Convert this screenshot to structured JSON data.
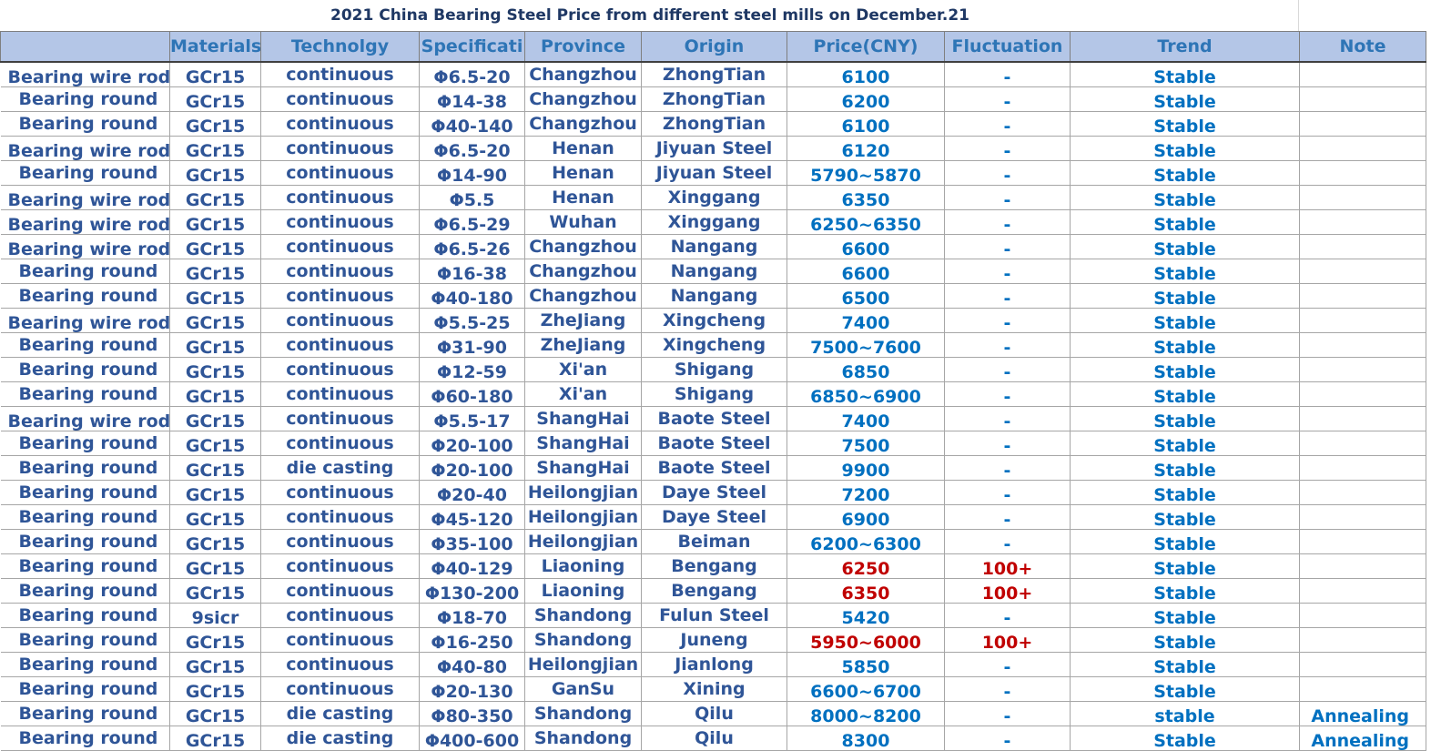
{
  "title": "2021 China Bearing Steel Price from different steel mills on  December.21",
  "columns": [
    "",
    "Materials",
    "Technolgy",
    "Specificati",
    "Province",
    "Origin",
    "Price(CNY)",
    "Fluctuation",
    "Trend",
    "Note"
  ],
  "rows": [
    {
      "name": "Bearing wire rod",
      "material": "GCr15",
      "tech": "continuous",
      "spec": "Φ6.5-20",
      "province": "Changzhou",
      "origin": "ZhongTian",
      "price": "6100",
      "fluct": "-",
      "trend": "Stable",
      "note": ""
    },
    {
      "name": "Bearing round",
      "material": "GCr15",
      "tech": "continuous",
      "spec": "Φ14-38",
      "province": "Changzhou",
      "origin": "ZhongTian",
      "price": "6200",
      "fluct": "-",
      "trend": "Stable",
      "note": ""
    },
    {
      "name": "Bearing round",
      "material": "GCr15",
      "tech": "continuous",
      "spec": "Φ40-140",
      "province": "Changzhou",
      "origin": "ZhongTian",
      "price": "6100",
      "fluct": "-",
      "trend": "Stable",
      "note": ""
    },
    {
      "name": "Bearing wire rod",
      "material": "GCr15",
      "tech": "continuous",
      "spec": "Φ6.5-20",
      "province": "Henan",
      "origin": "Jiyuan Steel",
      "price": "6120",
      "fluct": "-",
      "trend": "Stable",
      "note": ""
    },
    {
      "name": "Bearing round",
      "material": "GCr15",
      "tech": "continuous",
      "spec": "Φ14-90",
      "province": "Henan",
      "origin": "Jiyuan Steel",
      "price": "5790~5870",
      "fluct": "-",
      "trend": "Stable",
      "note": ""
    },
    {
      "name": "Bearing wire rod",
      "material": "GCr15",
      "tech": "continuous",
      "spec": "Φ5.5",
      "province": "Henan",
      "origin": "Xinggang",
      "price": "6350",
      "fluct": "-",
      "trend": "Stable",
      "note": ""
    },
    {
      "name": "Bearing wire rod",
      "material": "GCr15",
      "tech": "continuous",
      "spec": "Φ6.5-29",
      "province": "Wuhan",
      "origin": "Xinggang",
      "price": "6250~6350",
      "fluct": "-",
      "trend": "Stable",
      "note": ""
    },
    {
      "name": "Bearing wire rod",
      "material": "GCr15",
      "tech": "continuous",
      "spec": "Φ6.5-26",
      "province": "Changzhou",
      "origin": "Nangang",
      "price": "6600",
      "fluct": "-",
      "trend": "Stable",
      "note": ""
    },
    {
      "name": "Bearing round",
      "material": "GCr15",
      "tech": "continuous",
      "spec": "Φ16-38",
      "province": "Changzhou",
      "origin": "Nangang",
      "price": "6600",
      "fluct": "-",
      "trend": "Stable",
      "note": ""
    },
    {
      "name": "Bearing round",
      "material": "GCr15",
      "tech": "continuous",
      "spec": "Φ40-180",
      "province": "Changzhou",
      "origin": "Nangang",
      "price": "6500",
      "fluct": "-",
      "trend": "Stable",
      "note": ""
    },
    {
      "name": "Bearing wire rod",
      "material": "GCr15",
      "tech": "continuous",
      "spec": "Φ5.5-25",
      "province": "ZheJiang",
      "origin": "Xingcheng",
      "price": "7400",
      "fluct": "-",
      "trend": "Stable",
      "note": ""
    },
    {
      "name": "Bearing round",
      "material": "GCr15",
      "tech": "continuous",
      "spec": "Φ31-90",
      "province": "ZheJiang",
      "origin": "Xingcheng",
      "price": "7500~7600",
      "fluct": "-",
      "trend": "Stable",
      "note": ""
    },
    {
      "name": "Bearing round",
      "material": "GCr15",
      "tech": "continuous",
      "spec": "Φ12-59",
      "province": "Xi'an",
      "origin": "Shigang",
      "price": "6850",
      "fluct": "-",
      "trend": "Stable",
      "note": ""
    },
    {
      "name": "Bearing round",
      "material": "GCr15",
      "tech": "continuous",
      "spec": "Φ60-180",
      "province": "Xi'an",
      "origin": "Shigang",
      "price": "6850~6900",
      "fluct": "-",
      "trend": "Stable",
      "note": ""
    },
    {
      "name": "Bearing wire rod",
      "material": "GCr15",
      "tech": "continuous",
      "spec": "Φ5.5-17",
      "province": "ShangHai",
      "origin": "Baote Steel",
      "price": "7400",
      "fluct": "-",
      "trend": "Stable",
      "note": ""
    },
    {
      "name": "Bearing round",
      "material": "GCr15",
      "tech": "continuous",
      "spec": "Φ20-100",
      "province": "ShangHai",
      "origin": "Baote Steel",
      "price": "7500",
      "fluct": "-",
      "trend": "Stable",
      "note": ""
    },
    {
      "name": "Bearing round",
      "material": "GCr15",
      "tech": "die casting",
      "spec": "Φ20-100",
      "province": "ShangHai",
      "origin": "Baote Steel",
      "price": "9900",
      "fluct": "-",
      "trend": "Stable",
      "note": ""
    },
    {
      "name": "Bearing round",
      "material": "GCr15",
      "tech": "continuous",
      "spec": "Φ20-40",
      "province": "Heilongjian",
      "origin": "Daye  Steel",
      "price": "7200",
      "fluct": "-",
      "trend": "Stable",
      "note": ""
    },
    {
      "name": "Bearing round",
      "material": "GCr15",
      "tech": "continuous",
      "spec": "Φ45-120",
      "province": "Heilongjian",
      "origin": "Daye  Steel",
      "price": "6900",
      "fluct": "-",
      "trend": "Stable",
      "note": ""
    },
    {
      "name": "Bearing round",
      "material": "GCr15",
      "tech": "continuous",
      "spec": "Φ35-100",
      "province": "Heilongjian",
      "origin": "Beiman",
      "price": "6200~6300",
      "fluct": "-",
      "trend": "Stable",
      "note": ""
    },
    {
      "name": "Bearing round",
      "material": "GCr15",
      "tech": "continuous",
      "spec": "Φ40-129",
      "province": "Liaoning",
      "origin": "Bengang",
      "price": "6250",
      "fluct": "100+",
      "trend": "Stable",
      "note": "",
      "up": true
    },
    {
      "name": "Bearing round",
      "material": "GCr15",
      "tech": "continuous",
      "spec": "Φ130-200",
      "province": "Liaoning",
      "origin": "Bengang",
      "price": "6350",
      "fluct": "100+",
      "trend": "Stable",
      "note": "",
      "up": true
    },
    {
      "name": "Bearing round",
      "material": "9sicr",
      "tech": "continuous",
      "spec": "Φ18-70",
      "province": "Shandong",
      "origin": "Fulun Steel",
      "price": "5420",
      "fluct": "-",
      "trend": "Stable",
      "note": ""
    },
    {
      "name": "Bearing round",
      "material": "GCr15",
      "tech": "continuous",
      "spec": "Φ16-250",
      "province": "Shandong",
      "origin": "Juneng",
      "price": "5950~6000",
      "fluct": "100+",
      "trend": "Stable",
      "note": "",
      "up": true
    },
    {
      "name": "Bearing round",
      "material": "GCr15",
      "tech": "continuous",
      "spec": "Φ40-80",
      "province": "Heilongjian",
      "origin": "Jianlong",
      "price": "5850",
      "fluct": "-",
      "trend": "Stable",
      "note": ""
    },
    {
      "name": "Bearing round",
      "material": "GCr15",
      "tech": "continuous",
      "spec": "Φ20-130",
      "province": "GanSu",
      "origin": "Xining",
      "price": "6600~6700",
      "fluct": "-",
      "trend": "Stable",
      "note": ""
    },
    {
      "name": "Bearing round",
      "material": "GCr15",
      "tech": "die casting",
      "spec": "Φ80-350",
      "province": "Shandong",
      "origin": "Qilu",
      "price": "8000~8200",
      "fluct": "-",
      "trend": "stable",
      "note": "Annealing"
    },
    {
      "name": "Bearing round",
      "material": "GCr15",
      "tech": "die casting",
      "spec": "Φ400-600",
      "province": "Shandong",
      "origin": "Qilu",
      "price": "8300",
      "fluct": "-",
      "trend": "Stable",
      "note": "Annealing"
    }
  ]
}
